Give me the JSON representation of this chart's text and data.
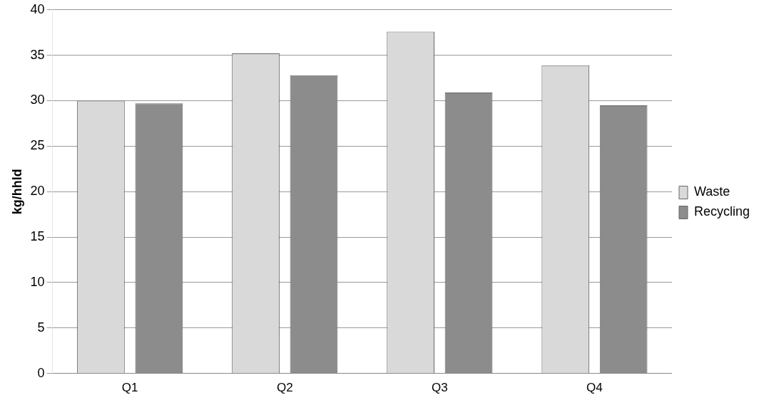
{
  "chart_data": {
    "type": "bar",
    "ylabel": "kg/hhld",
    "categories": [
      "Q1",
      "Q2",
      "Q3",
      "Q4"
    ],
    "series": [
      {
        "name": "Waste",
        "color": "#d9d9d9",
        "values": [
          30,
          35.2,
          37.6,
          33.9
        ]
      },
      {
        "name": "Recycling",
        "color": "#8c8c8c",
        "values": [
          29.7,
          32.8,
          30.9,
          29.5
        ]
      }
    ],
    "ylim": [
      0,
      40
    ],
    "yticks": [
      0,
      5,
      10,
      15,
      20,
      25,
      30,
      35,
      40
    ],
    "grid": "y",
    "legend": "right"
  }
}
